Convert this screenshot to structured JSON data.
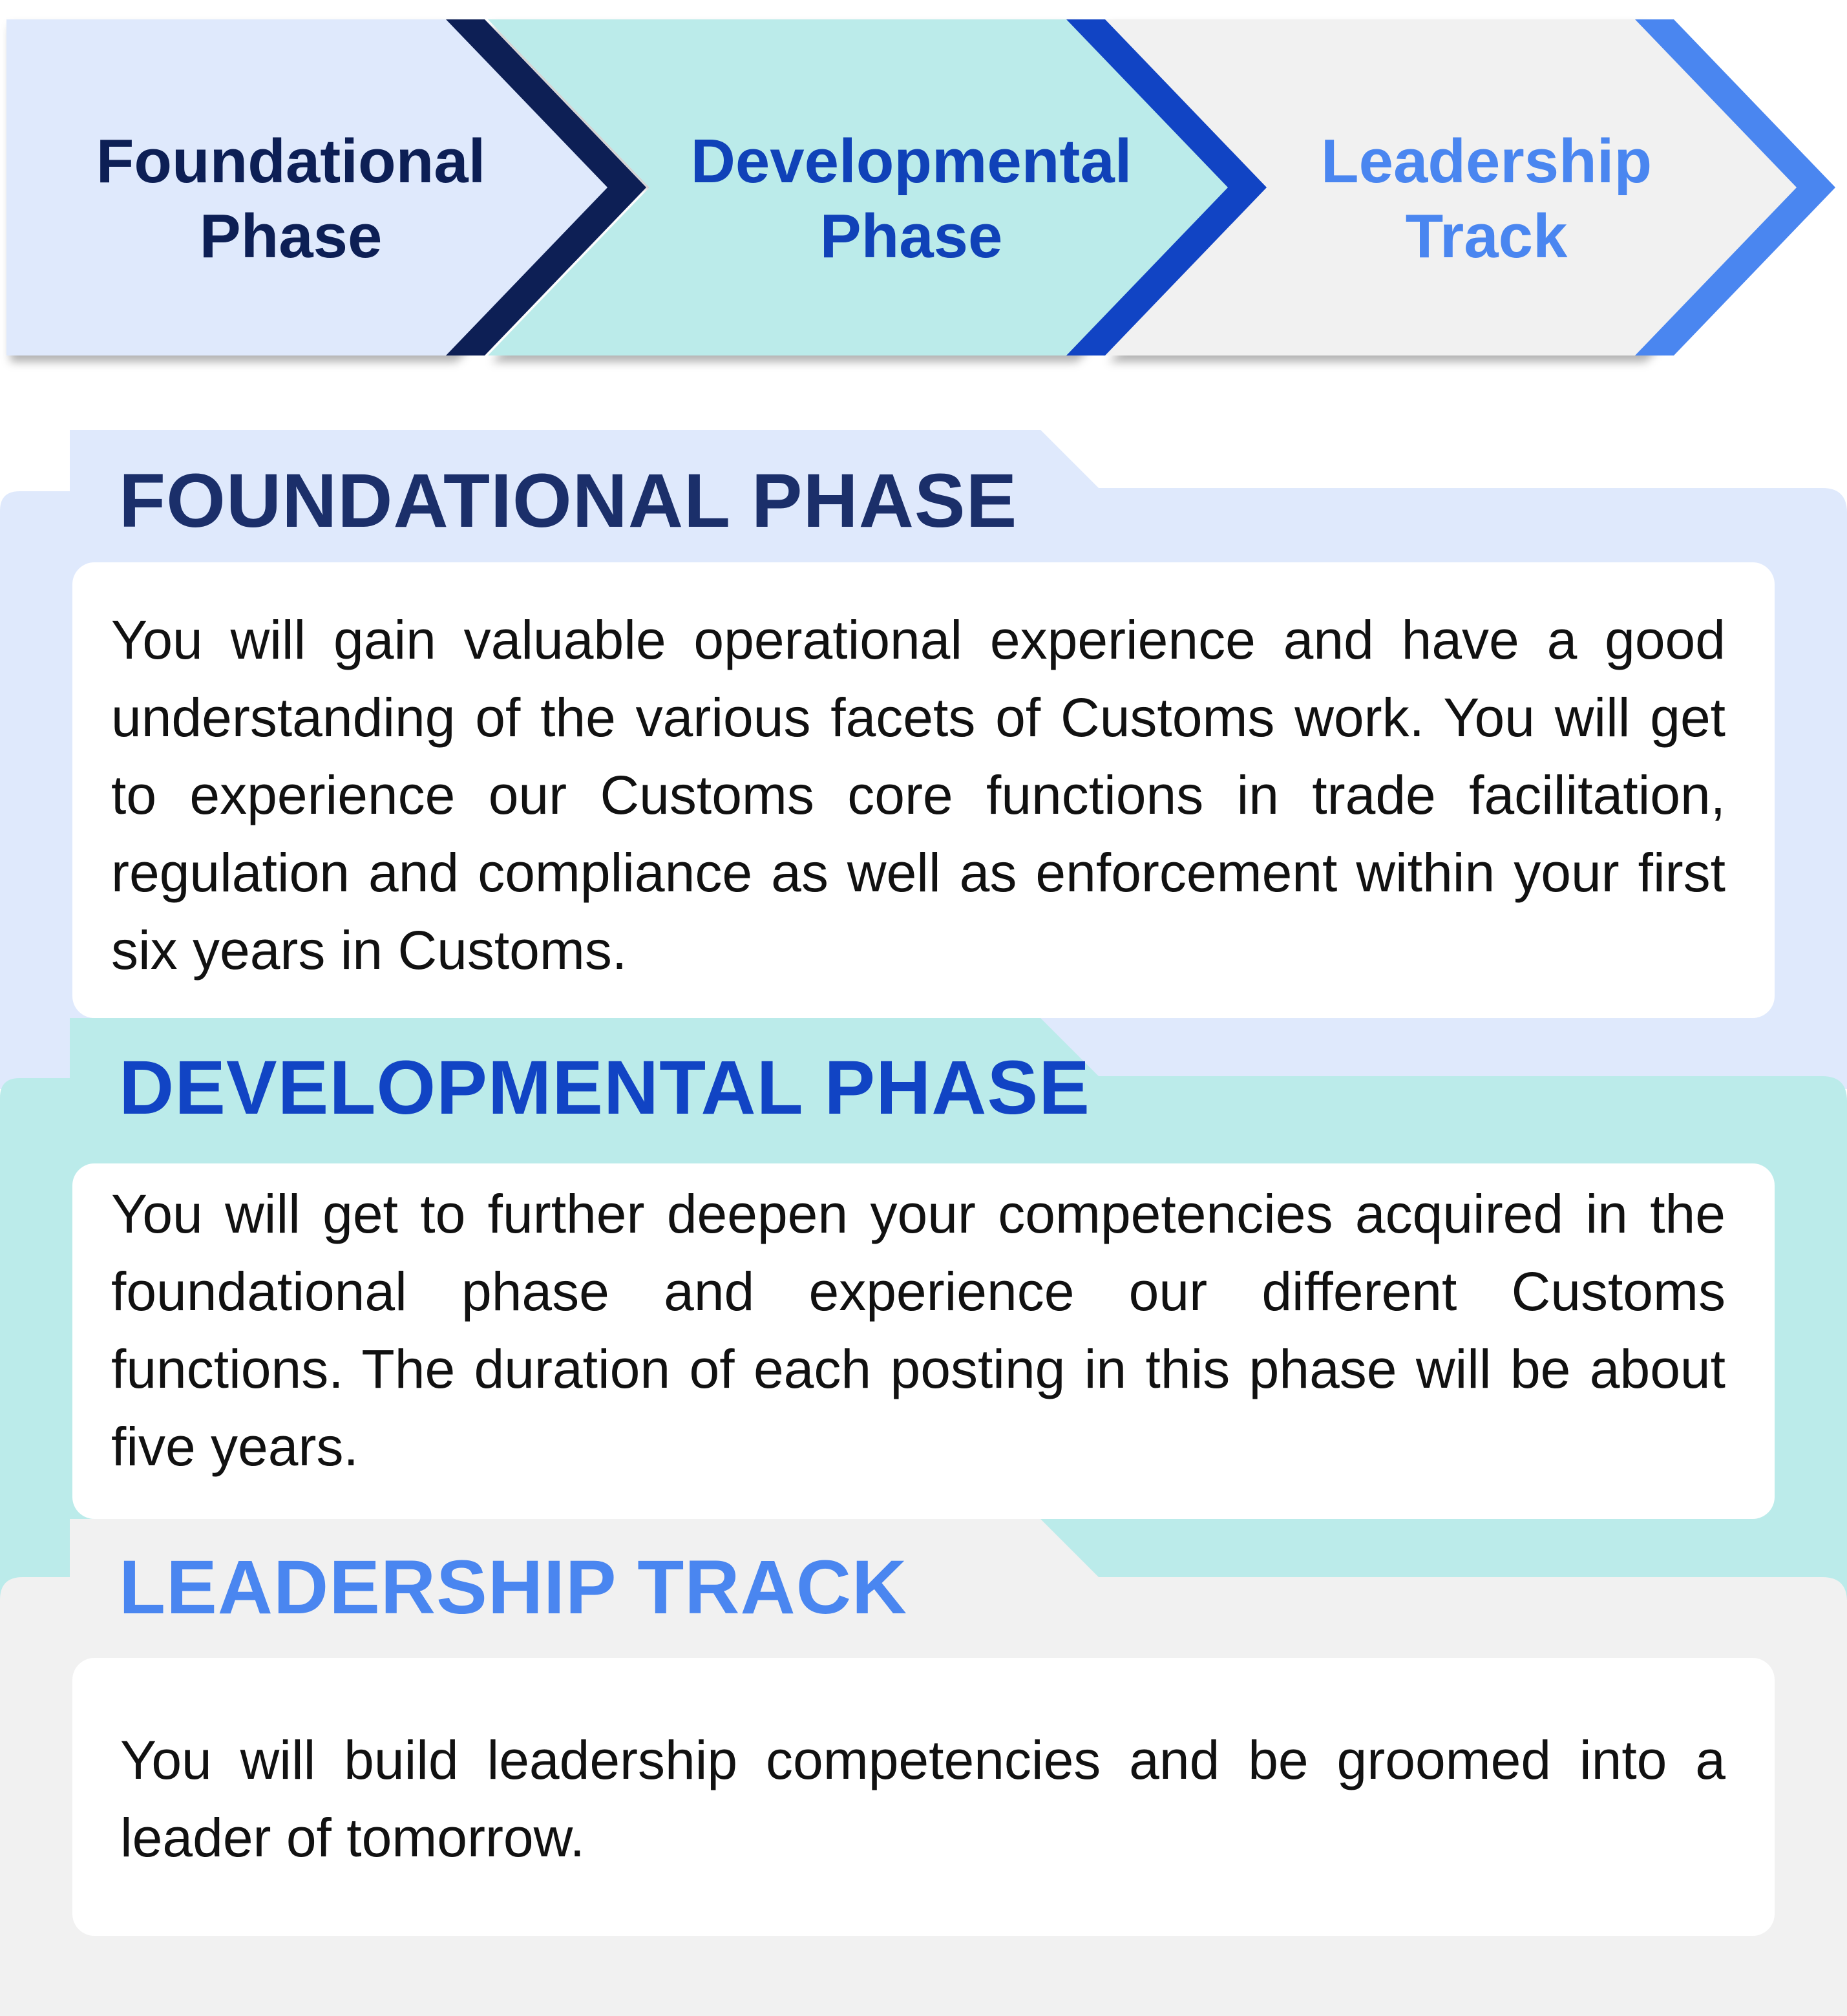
{
  "process_steps": [
    {
      "line1": "Foundational",
      "line2": "Phase"
    },
    {
      "line1": "Developmental",
      "line2": "Phase"
    },
    {
      "line1": "Leadership",
      "line2": "Track"
    }
  ],
  "phases": [
    {
      "title": "FOUNDATIONAL PHASE",
      "description": "You will gain valuable operational experience and have a good understanding of the various facets of Customs work. You will get to experience our Customs core functions in trade facilitation, regulation and compliance as well as enforcement within your first six years in Customs."
    },
    {
      "title": "DEVELOPMENTAL PHASE",
      "description": "You will get to further deepen your competencies acquired in the foundational phase and experience our different Customs functions. The duration of each posting in this phase will be about five years."
    },
    {
      "title": "LEADERSHIP TRACK",
      "description": "You will build leadership competencies and be groomed into a leader of tomorrow."
    }
  ],
  "colors": {
    "foundational_fill": "#dfe9fc",
    "developmental_fill": "#bbebea",
    "leadership_fill": "#f1f1f1",
    "foundational_accent": "#0d1f55",
    "developmental_accent": "#1144c4",
    "leadership_accent": "#4a86f0"
  }
}
